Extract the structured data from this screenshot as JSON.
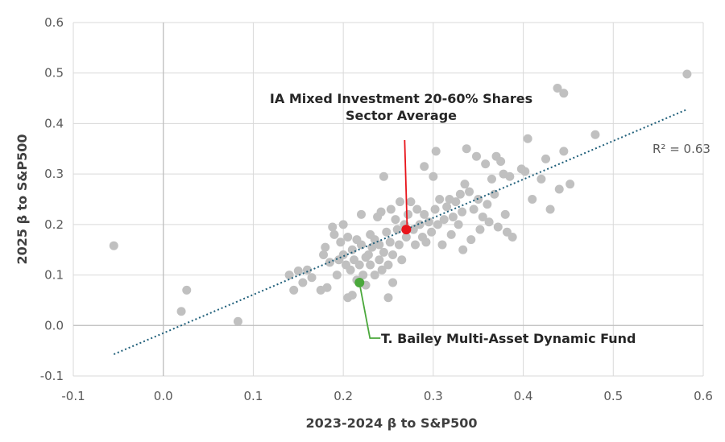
{
  "chart_data": {
    "type": "scatter",
    "xlabel": "2023-2024 β to S&P500",
    "ylabel": "2025 β to S&P500",
    "xlim": [
      -0.1,
      0.6
    ],
    "ylim": [
      -0.1,
      0.6
    ],
    "x_ticks": [
      "-0.1",
      "0.0",
      "0.1",
      "0.2",
      "0.3",
      "0.4",
      "0.5",
      "0.6"
    ],
    "y_ticks": [
      "-0.1",
      "0.0",
      "0.1",
      "0.2",
      "0.3",
      "0.4",
      "0.5",
      "0.6"
    ],
    "grid": true,
    "colors": {
      "points": "#c0c0c0",
      "trend": "#1f5f7a",
      "sector": "#e8141b",
      "fund": "#4aa83b",
      "grid": "#d9d9d9",
      "zero_axis": "#bfbfbf"
    },
    "trendline": {
      "x": [
        -0.055,
        0.582
      ],
      "y": [
        -0.057,
        0.428
      ],
      "label": "R² = 0.63"
    },
    "highlights": [
      {
        "name_lines": [
          "IA Mixed Investment 20-60% Shares",
          "Sector Average"
        ],
        "x": 0.27,
        "y": 0.19,
        "color": "#e8141b",
        "label_anchor": [
          0.265,
          0.268
        ]
      },
      {
        "name_lines": [
          "T. Bailey Multi-Asset Dynamic Fund"
        ],
        "x": 0.218,
        "y": 0.085,
        "color": "#4aa83b",
        "label_anchor": [
          0.24,
          -0.025
        ]
      }
    ],
    "points": [
      [
        -0.055,
        0.158
      ],
      [
        0.02,
        0.028
      ],
      [
        0.026,
        0.07
      ],
      [
        0.083,
        0.008
      ],
      [
        0.14,
        0.1
      ],
      [
        0.145,
        0.07
      ],
      [
        0.15,
        0.108
      ],
      [
        0.155,
        0.085
      ],
      [
        0.16,
        0.11
      ],
      [
        0.165,
        0.095
      ],
      [
        0.175,
        0.07
      ],
      [
        0.178,
        0.14
      ],
      [
        0.18,
        0.155
      ],
      [
        0.182,
        0.075
      ],
      [
        0.185,
        0.125
      ],
      [
        0.188,
        0.195
      ],
      [
        0.19,
        0.18
      ],
      [
        0.193,
        0.1
      ],
      [
        0.195,
        0.13
      ],
      [
        0.197,
        0.165
      ],
      [
        0.2,
        0.2
      ],
      [
        0.2,
        0.14
      ],
      [
        0.203,
        0.12
      ],
      [
        0.205,
        0.175
      ],
      [
        0.205,
        0.055
      ],
      [
        0.208,
        0.11
      ],
      [
        0.21,
        0.06
      ],
      [
        0.21,
        0.15
      ],
      [
        0.212,
        0.13
      ],
      [
        0.215,
        0.09
      ],
      [
        0.215,
        0.17
      ],
      [
        0.218,
        0.12
      ],
      [
        0.22,
        0.22
      ],
      [
        0.22,
        0.16
      ],
      [
        0.222,
        0.1
      ],
      [
        0.225,
        0.08
      ],
      [
        0.225,
        0.135
      ],
      [
        0.228,
        0.14
      ],
      [
        0.23,
        0.18
      ],
      [
        0.23,
        0.12
      ],
      [
        0.232,
        0.155
      ],
      [
        0.235,
        0.17
      ],
      [
        0.235,
        0.1
      ],
      [
        0.238,
        0.215
      ],
      [
        0.24,
        0.13
      ],
      [
        0.24,
        0.16
      ],
      [
        0.242,
        0.225
      ],
      [
        0.243,
        0.11
      ],
      [
        0.245,
        0.295
      ],
      [
        0.245,
        0.145
      ],
      [
        0.248,
        0.185
      ],
      [
        0.25,
        0.055
      ],
      [
        0.25,
        0.12
      ],
      [
        0.252,
        0.165
      ],
      [
        0.253,
        0.23
      ],
      [
        0.255,
        0.085
      ],
      [
        0.255,
        0.14
      ],
      [
        0.258,
        0.21
      ],
      [
        0.26,
        0.19
      ],
      [
        0.262,
        0.16
      ],
      [
        0.263,
        0.245
      ],
      [
        0.265,
        0.13
      ],
      [
        0.268,
        0.2
      ],
      [
        0.27,
        0.175
      ],
      [
        0.272,
        0.22
      ],
      [
        0.275,
        0.245
      ],
      [
        0.278,
        0.19
      ],
      [
        0.28,
        0.16
      ],
      [
        0.282,
        0.23
      ],
      [
        0.285,
        0.2
      ],
      [
        0.288,
        0.175
      ],
      [
        0.29,
        0.315
      ],
      [
        0.29,
        0.22
      ],
      [
        0.292,
        0.165
      ],
      [
        0.295,
        0.205
      ],
      [
        0.298,
        0.185
      ],
      [
        0.3,
        0.295
      ],
      [
        0.302,
        0.23
      ],
      [
        0.303,
        0.345
      ],
      [
        0.305,
        0.2
      ],
      [
        0.307,
        0.25
      ],
      [
        0.31,
        0.16
      ],
      [
        0.312,
        0.21
      ],
      [
        0.315,
        0.235
      ],
      [
        0.318,
        0.25
      ],
      [
        0.32,
        0.18
      ],
      [
        0.322,
        0.215
      ],
      [
        0.325,
        0.245
      ],
      [
        0.328,
        0.2
      ],
      [
        0.33,
        0.26
      ],
      [
        0.332,
        0.225
      ],
      [
        0.333,
        0.15
      ],
      [
        0.335,
        0.28
      ],
      [
        0.337,
        0.35
      ],
      [
        0.34,
        0.265
      ],
      [
        0.342,
        0.17
      ],
      [
        0.345,
        0.23
      ],
      [
        0.348,
        0.335
      ],
      [
        0.35,
        0.25
      ],
      [
        0.352,
        0.19
      ],
      [
        0.355,
        0.215
      ],
      [
        0.358,
        0.32
      ],
      [
        0.36,
        0.24
      ],
      [
        0.362,
        0.205
      ],
      [
        0.365,
        0.29
      ],
      [
        0.368,
        0.26
      ],
      [
        0.37,
        0.335
      ],
      [
        0.372,
        0.195
      ],
      [
        0.375,
        0.325
      ],
      [
        0.378,
        0.3
      ],
      [
        0.38,
        0.22
      ],
      [
        0.382,
        0.185
      ],
      [
        0.385,
        0.295
      ],
      [
        0.388,
        0.175
      ],
      [
        0.398,
        0.31
      ],
      [
        0.402,
        0.305
      ],
      [
        0.405,
        0.37
      ],
      [
        0.41,
        0.25
      ],
      [
        0.42,
        0.29
      ],
      [
        0.425,
        0.33
      ],
      [
        0.43,
        0.23
      ],
      [
        0.438,
        0.47
      ],
      [
        0.44,
        0.27
      ],
      [
        0.445,
        0.46
      ],
      [
        0.445,
        0.345
      ],
      [
        0.452,
        0.28
      ],
      [
        0.48,
        0.378
      ],
      [
        0.582,
        0.498
      ]
    ]
  }
}
